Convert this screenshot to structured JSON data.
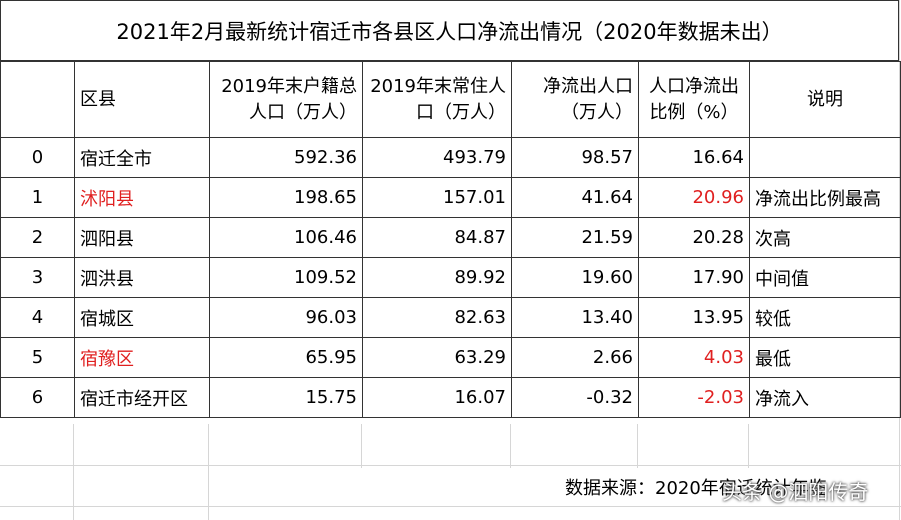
{
  "title": "2021年2月最新统计宿迁市各县区人口净流出情况（2020年数据未出）",
  "table": {
    "header": [
      "",
      "区县",
      "2019年末户籍总\n人口（万人）",
      "2019年末常住人\n口（万人）",
      "净流出人口\n（万人）",
      "人口净流出\n比例（%）",
      "说明"
    ],
    "rows": [
      [
        "0",
        "宿迁全市",
        "592.36",
        "493.79",
        "98.57",
        "16.64",
        ""
      ],
      [
        "1",
        "沭阳县",
        "198.65",
        "157.01",
        "41.64",
        "20.96",
        "净流出比例最高"
      ],
      [
        "2",
        "泗阳县",
        "106.46",
        "84.87",
        "21.59",
        "20.28",
        "次高"
      ],
      [
        "3",
        "泗洪县",
        "109.52",
        "89.92",
        "19.60",
        "17.90",
        "中间值"
      ],
      [
        "4",
        "宿城区",
        "96.03",
        "82.63",
        "13.40",
        "13.95",
        "较低"
      ],
      [
        "5",
        "宿豫区",
        "65.95",
        "63.29",
        "2.66",
        "4.03",
        "最低"
      ],
      [
        "6",
        "宿迁市经开区",
        "15.75",
        "16.07",
        "-0.32",
        "-2.03",
        "净流入"
      ]
    ]
  },
  "source": "数据来源：2020年宿迁统计年鉴",
  "watermark": "头条 @泗阳传奇"
}
